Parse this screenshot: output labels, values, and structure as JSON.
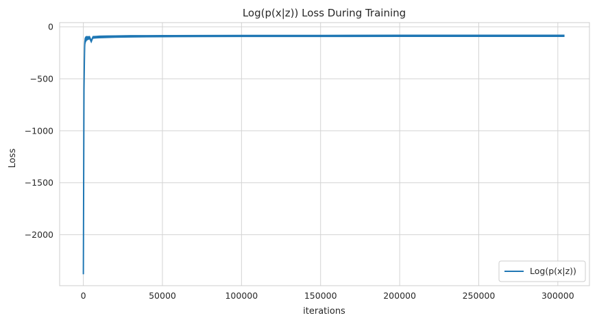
{
  "chart_data": {
    "type": "line",
    "title": "Log(p(x|z)) Loss During Training",
    "xlabel": "iterations",
    "ylabel": "Loss",
    "xlim": [
      -15000,
      320000
    ],
    "ylim": [
      -2490,
      40
    ],
    "x_ticks": [
      0,
      50000,
      100000,
      150000,
      200000,
      250000,
      300000
    ],
    "x_tick_labels": [
      "0",
      "50000",
      "100000",
      "150000",
      "200000",
      "250000",
      "300000"
    ],
    "y_ticks": [
      0,
      -500,
      -1000,
      -1500,
      -2000
    ],
    "y_tick_labels": [
      "0",
      "−500",
      "−1000",
      "−1500",
      "−2000"
    ],
    "grid": true,
    "legend_position": "lower-right",
    "colors": {
      "series": "#1f77b4",
      "grid": "#d3d3d3",
      "frame": "#cccccc"
    },
    "series": [
      {
        "name": "Log(p(x|z))",
        "x": [
          0,
          200,
          400,
          600,
          800,
          1000,
          1500,
          2000,
          3000,
          4000,
          5000,
          6000,
          8000,
          10000,
          15000,
          20000,
          30000,
          40000,
          50000,
          75000,
          100000,
          150000,
          200000,
          250000,
          300000,
          304000
        ],
        "y": [
          -2380,
          -1500,
          -600,
          -380,
          -200,
          -140,
          -120,
          -112,
          -108,
          -105,
          -140,
          -102,
          -100,
          -98,
          -96,
          -94,
          -92,
          -91,
          -90,
          -89,
          -88,
          -88,
          -87,
          -87,
          -87,
          -87
        ],
        "band": [
          0,
          80,
          120,
          100,
          60,
          30,
          25,
          20,
          15,
          14,
          12,
          10,
          10,
          10,
          10,
          9,
          9,
          8,
          8,
          8,
          8,
          8,
          8,
          8,
          8,
          8
        ]
      }
    ]
  }
}
